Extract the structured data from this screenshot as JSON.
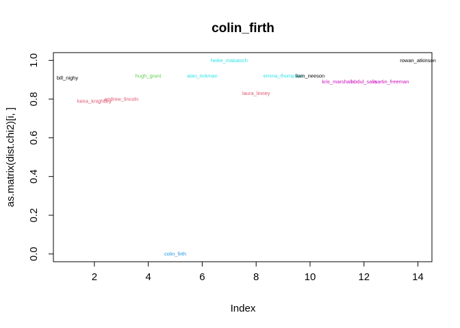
{
  "chart_data": {
    "type": "scatter",
    "title": "colin_firth",
    "xlabel": "Index",
    "ylabel": "as.matrix(dist.chi2)[i, ]",
    "xlim": [
      0.48,
      14.52
    ],
    "ylim": [
      -0.04,
      1.04
    ],
    "x_ticks": [
      2,
      4,
      6,
      8,
      10,
      12,
      14
    ],
    "y_ticks": [
      0.0,
      0.2,
      0.4,
      0.6,
      0.8,
      1.0
    ],
    "x_tick_labels": [
      "2",
      "4",
      "6",
      "8",
      "10",
      "12",
      "14"
    ],
    "y_tick_labels": [
      "0.0",
      "0.2",
      "0.4",
      "0.6",
      "0.8",
      "1.0"
    ],
    "grid": false,
    "points": [
      {
        "x": 1,
        "y": 0.91,
        "label": "bill_nighy",
        "color": "#000000"
      },
      {
        "x": 2,
        "y": 0.79,
        "label": "keira_knightley",
        "color": "#DF536B"
      },
      {
        "x": 3,
        "y": 0.8,
        "label": "andrew_lincoln",
        "color": "#DF536B"
      },
      {
        "x": 4,
        "y": 0.92,
        "label": "hugh_grant",
        "color": "#61D04F"
      },
      {
        "x": 5,
        "y": 0.0,
        "label": "colin_firth",
        "color": "#2297E6"
      },
      {
        "x": 6,
        "y": 0.92,
        "label": "alan_rickman",
        "color": "#28E2E5"
      },
      {
        "x": 7,
        "y": 1.0,
        "label": "heike_makatsch",
        "color": "#28E2E5"
      },
      {
        "x": 8,
        "y": 0.83,
        "label": "laura_linney",
        "color": "#DF536B"
      },
      {
        "x": 9,
        "y": 0.92,
        "label": "emma_thompson",
        "color": "#28E2E5"
      },
      {
        "x": 10,
        "y": 0.92,
        "label": "liam_neeson",
        "color": "#000000"
      },
      {
        "x": 11,
        "y": 0.89,
        "label": "kris_marshall",
        "color": "#CD0BBC"
      },
      {
        "x": 12,
        "y": 0.89,
        "label": "abdul_salis",
        "color": "#CD0BBC"
      },
      {
        "x": 13,
        "y": 0.89,
        "label": "martin_freeman",
        "color": "#CD0BBC"
      },
      {
        "x": 14,
        "y": 1.0,
        "label": "rowan_atkinson",
        "color": "#000000"
      }
    ]
  }
}
